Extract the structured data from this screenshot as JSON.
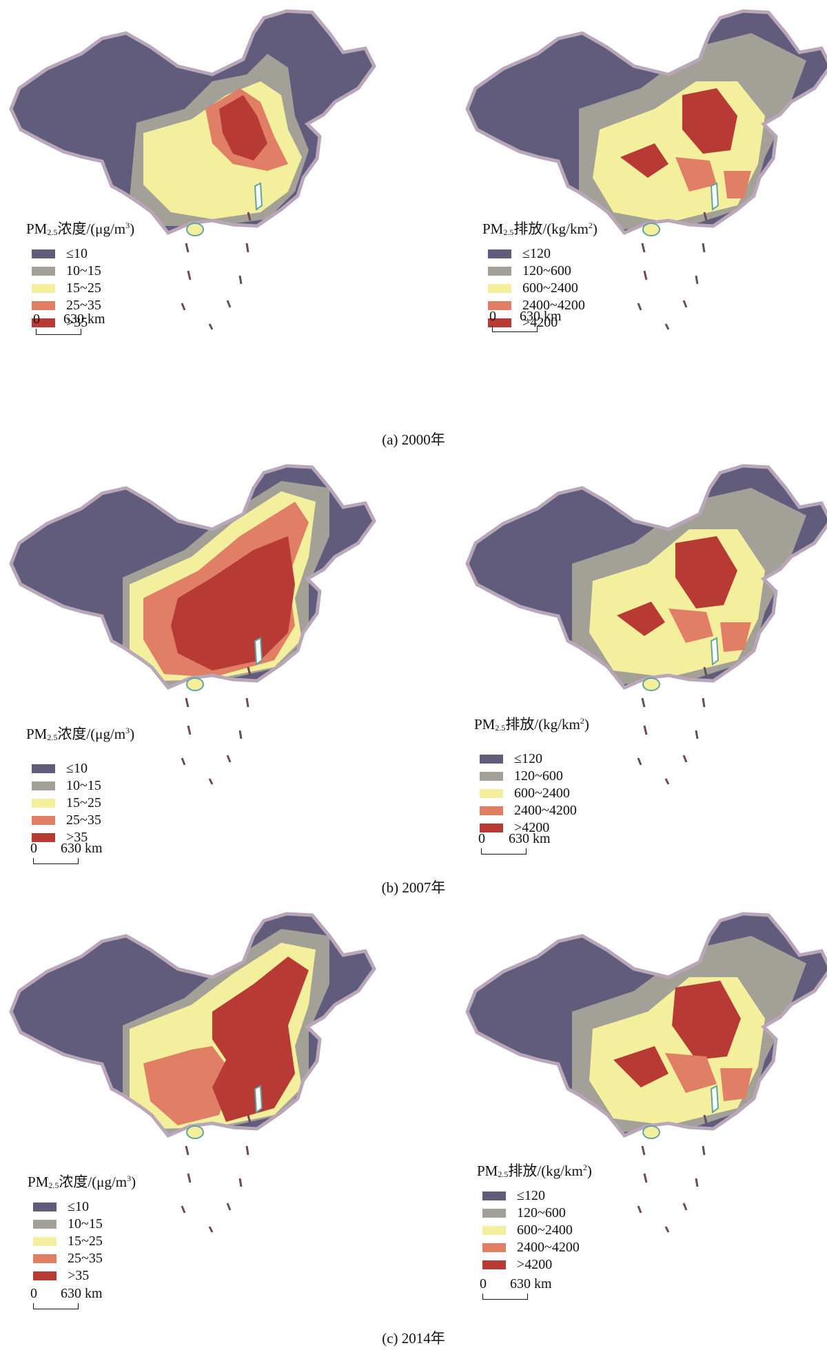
{
  "colors": {
    "conc_le10": "#615b7c",
    "conc_10_15": "#a2a097",
    "conc_15_25": "#f3ef9c",
    "conc_25_35": "#e07e66",
    "conc_gt35": "#b73a35",
    "border": "#b9a6b8",
    "coast": "#5fa3a0"
  },
  "concentration_legend": {
    "title_prefix": "PM",
    "title_sub": "2.5",
    "title_main": "浓度/(μg/m",
    "title_sup": "3",
    "title_end": ")",
    "items": [
      {
        "label": "≤10",
        "color": "#615b7c"
      },
      {
        "label": "10~15",
        "color": "#a2a097"
      },
      {
        "label": "15~25",
        "color": "#f3ef9c"
      },
      {
        "label": "25~35",
        "color": "#e07e66"
      },
      {
        "label": ">35",
        "color": "#b73a35"
      }
    ]
  },
  "emission_legend": {
    "title_prefix": "PM",
    "title_sub": "2.5",
    "title_main": "排放/(kg/km",
    "title_sup": "2",
    "title_end": ")",
    "items": [
      {
        "label": "≤120",
        "color": "#615b7c"
      },
      {
        "label": "120~600",
        "color": "#a2a097"
      },
      {
        "label": "600~2400",
        "color": "#f3ef9c"
      },
      {
        "label": "2400~4200",
        "color": "#e07e66"
      },
      {
        "label": ">4200",
        "color": "#b73a35"
      }
    ]
  },
  "scale": {
    "zero": "0",
    "distance": "630 km"
  },
  "panels": [
    {
      "caption": "(a) 2000年",
      "conc_level": 1,
      "emis_level": 1
    },
    {
      "caption": "(b) 2007年",
      "conc_level": 3,
      "emis_level": 2
    },
    {
      "caption": "(c) 2014年",
      "conc_level": 2,
      "emis_level": 3
    }
  ]
}
